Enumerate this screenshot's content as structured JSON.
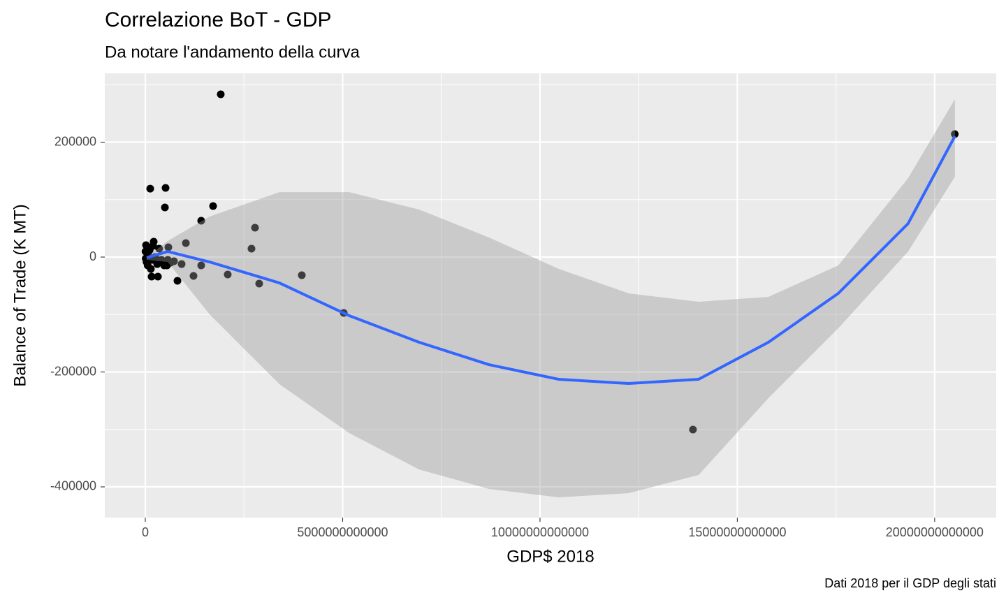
{
  "chart_data": {
    "type": "scatter",
    "title": "Correlazione BoT - GDP",
    "subtitle": "Da notare l'andamento della curva",
    "x_label": "GDP$ 2018",
    "y_label": "Balance of Trade (K MT)",
    "caption": "Dati 2018 per il GDP degli stati",
    "xlim": [
      -1027000000000,
      21560000000000
    ],
    "ylim": [
      -453500,
      319800
    ],
    "xticks": [
      0,
      5000000000000,
      10000000000000,
      15000000000000,
      20000000000000
    ],
    "yticks": [
      -400000,
      -200000,
      0,
      200000
    ],
    "minor_xticks": [
      2500000000000,
      7500000000000,
      12500000000000,
      17500000000000
    ],
    "minor_yticks": [
      -300000,
      -100000,
      100000,
      300000
    ],
    "grid": true,
    "point_color": "#000000",
    "points": {
      "x": [
        1911000000000,
        20510000000000,
        124000000000,
        513000000000,
        496000000000,
        1717000000000,
        1416000000000,
        2779000000000,
        1027000000000,
        2690000000000,
        584000000000,
        3965000000000,
        2088000000000,
        1221000000000,
        1416000000000,
        2885000000000,
        920000000000,
        726000000000,
        814000000000,
        5027000000000,
        13876000000000,
        18000000000,
        212000000000,
        159000000000,
        319000000000,
        478000000000,
        549000000000,
        5000000000,
        10000000000,
        30000000000,
        70000000000,
        110000000000,
        180000000000,
        250000000000,
        300000000000,
        350000000000,
        410000000000,
        450000000000,
        570000000000,
        640000000000,
        60000000000,
        140000000000,
        195000000000
      ],
      "y": [
        283300,
        214000,
        119100,
        120400,
        86300,
        88800,
        63200,
        51100,
        24300,
        14600,
        17000,
        -31600,
        -30400,
        -32800,
        -14600,
        -46200,
        -12200,
        -7300,
        -41300,
        -97300,
        -300300,
        20700,
        26700,
        -34000,
        -34000,
        -14600,
        -14600,
        9700,
        -2400,
        -8500,
        3600,
        12200,
        -4900,
        0,
        -12200,
        14600,
        -4900,
        -9700,
        -4900,
        -9700,
        -14600,
        -20700,
        19500
      ]
    },
    "smooth": {
      "color": "#3366ff",
      "band_color": "#999999",
      "x": [
        35000000000,
        566000000000,
        1628000000000,
        3398000000000,
        5168000000000,
        6938000000000,
        8708000000000,
        10478000000000,
        12248000000000,
        14018000000000,
        15788000000000,
        17558000000000,
        19328000000000,
        20513000000000
      ],
      "y": [
        -1200,
        9700,
        -8500,
        -45000,
        -102100,
        -148300,
        -187300,
        -212800,
        -220100,
        -212800,
        -148300,
        -63200,
        58400,
        210400
      ],
      "ymax": [
        0,
        28000,
        70500,
        113000,
        113000,
        82700,
        34000,
        -20700,
        -63200,
        -77800,
        -69300,
        -14600,
        137400,
        274800
      ],
      "ymin": [
        -4900,
        -8500,
        -99700,
        -221300,
        -306400,
        -369700,
        -403700,
        -418300,
        -411000,
        -379400,
        -245600,
        -124000,
        9700,
        139800
      ]
    }
  }
}
